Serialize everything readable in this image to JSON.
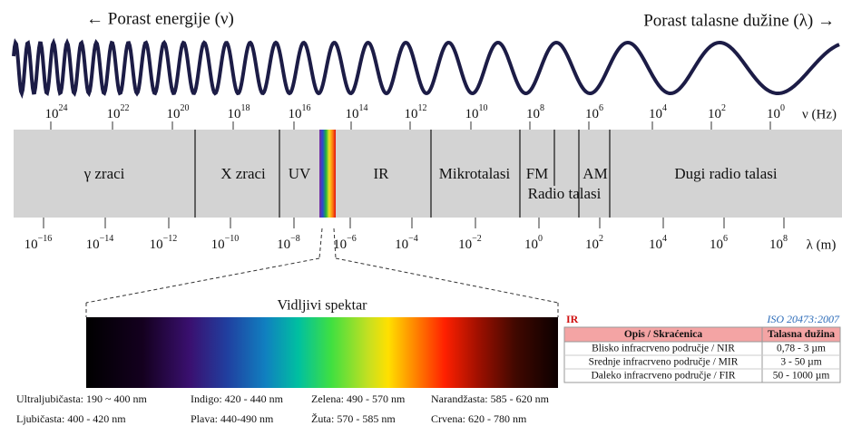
{
  "header": {
    "left": "← Porast energije (ν)",
    "right": "Porast talasne dužine (λ) →"
  },
  "frequency_scale": {
    "ticks": [
      {
        "base": "10",
        "exp": "24"
      },
      {
        "base": "10",
        "exp": "22"
      },
      {
        "base": "10",
        "exp": "20"
      },
      {
        "base": "10",
        "exp": "18"
      },
      {
        "base": "10",
        "exp": "16"
      },
      {
        "base": "10",
        "exp": "14"
      },
      {
        "base": "10",
        "exp": "12"
      },
      {
        "base": "10",
        "exp": "10"
      },
      {
        "base": "10",
        "exp": "8"
      },
      {
        "base": "10",
        "exp": "6"
      },
      {
        "base": "10",
        "exp": "4"
      },
      {
        "base": "10",
        "exp": "2"
      },
      {
        "base": "10",
        "exp": "0"
      }
    ],
    "unit": "ν (Hz)"
  },
  "bands": [
    "γ zraci",
    "X zraci",
    "UV",
    "IR",
    "Mikrotalasi",
    "FM",
    "AM",
    "Radio talasi",
    "Dugi radio talasi"
  ],
  "wavelength_scale": {
    "ticks": [
      {
        "base": "10",
        "exp": "−16"
      },
      {
        "base": "10",
        "exp": "−14"
      },
      {
        "base": "10",
        "exp": "−12"
      },
      {
        "base": "10",
        "exp": "−10"
      },
      {
        "base": "10",
        "exp": "−8"
      },
      {
        "base": "10",
        "exp": "−6"
      },
      {
        "base": "10",
        "exp": "−4"
      },
      {
        "base": "10",
        "exp": "−2"
      },
      {
        "base": "10",
        "exp": "0"
      },
      {
        "base": "10",
        "exp": "2"
      },
      {
        "base": "10",
        "exp": "4"
      },
      {
        "base": "10",
        "exp": "6"
      },
      {
        "base": "10",
        "exp": "8"
      }
    ],
    "unit": "λ (m)"
  },
  "visible": {
    "title": "Vidljivi spektar",
    "legend": [
      [
        "Ultraljubičasta: 190 ~ 400 nm",
        "Indigo: 420 - 440 nm",
        "Zelena: 490 - 570 nm",
        "Narandžasta: 585 - 620 nm"
      ],
      [
        "Ljubičasta: 400 - 420 nm",
        "Plava: 440-490 nm",
        "Žuta: 570 - 585 nm",
        "Crvena: 620 - 780 nm"
      ]
    ]
  },
  "ir_table": {
    "label": "IR",
    "standard": "ISO 20473:2007",
    "header": [
      "Opis / Skraćenica",
      "Talasna dužina"
    ],
    "rows": [
      [
        "Blisko infracrveno područje / NIR",
        "0,78 - 3 µm"
      ],
      [
        "Srednje infracrveno područje / MIR",
        "3 - 50 µm"
      ],
      [
        "Daleko infracrveno područje / FIR",
        "50 - 1000 µm"
      ]
    ]
  }
}
